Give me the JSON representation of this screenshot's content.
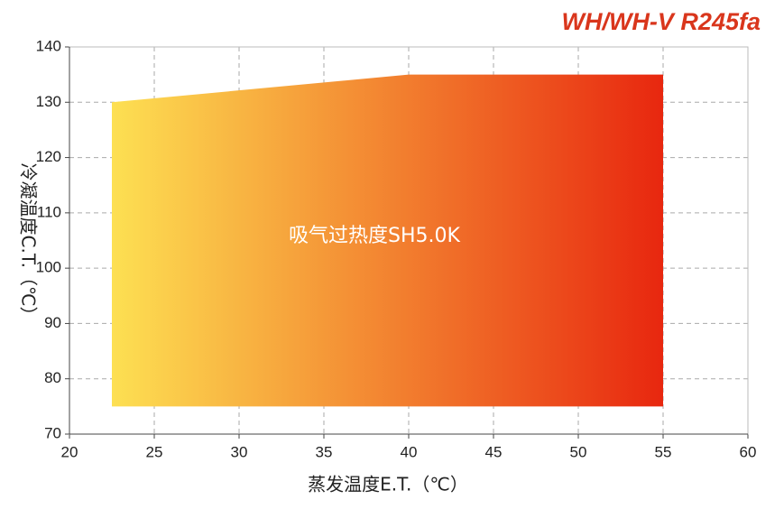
{
  "chart_data": {
    "type": "area",
    "title": "WH/WH-V R245fa",
    "xlabel": "蒸发温度E.T.（℃）",
    "ylabel": "冷凝温度C.T.（℃）",
    "annotation": "吸气过热度SH5.0K",
    "xlim": [
      20,
      60
    ],
    "xticks": [
      20,
      25,
      30,
      35,
      40,
      45,
      50,
      55,
      60
    ],
    "ylim": [
      70,
      140
    ],
    "yticks": [
      70,
      80,
      90,
      100,
      110,
      120,
      130,
      140
    ],
    "grid": true,
    "title_color": "#d9361c",
    "series": [
      {
        "x": [
          22.5,
          22.5,
          40,
          55,
          55
        ],
        "values": [
          75,
          130,
          135,
          135,
          75
        ],
        "gradient": [
          "#fde052",
          "#e8270f"
        ]
      }
    ]
  }
}
